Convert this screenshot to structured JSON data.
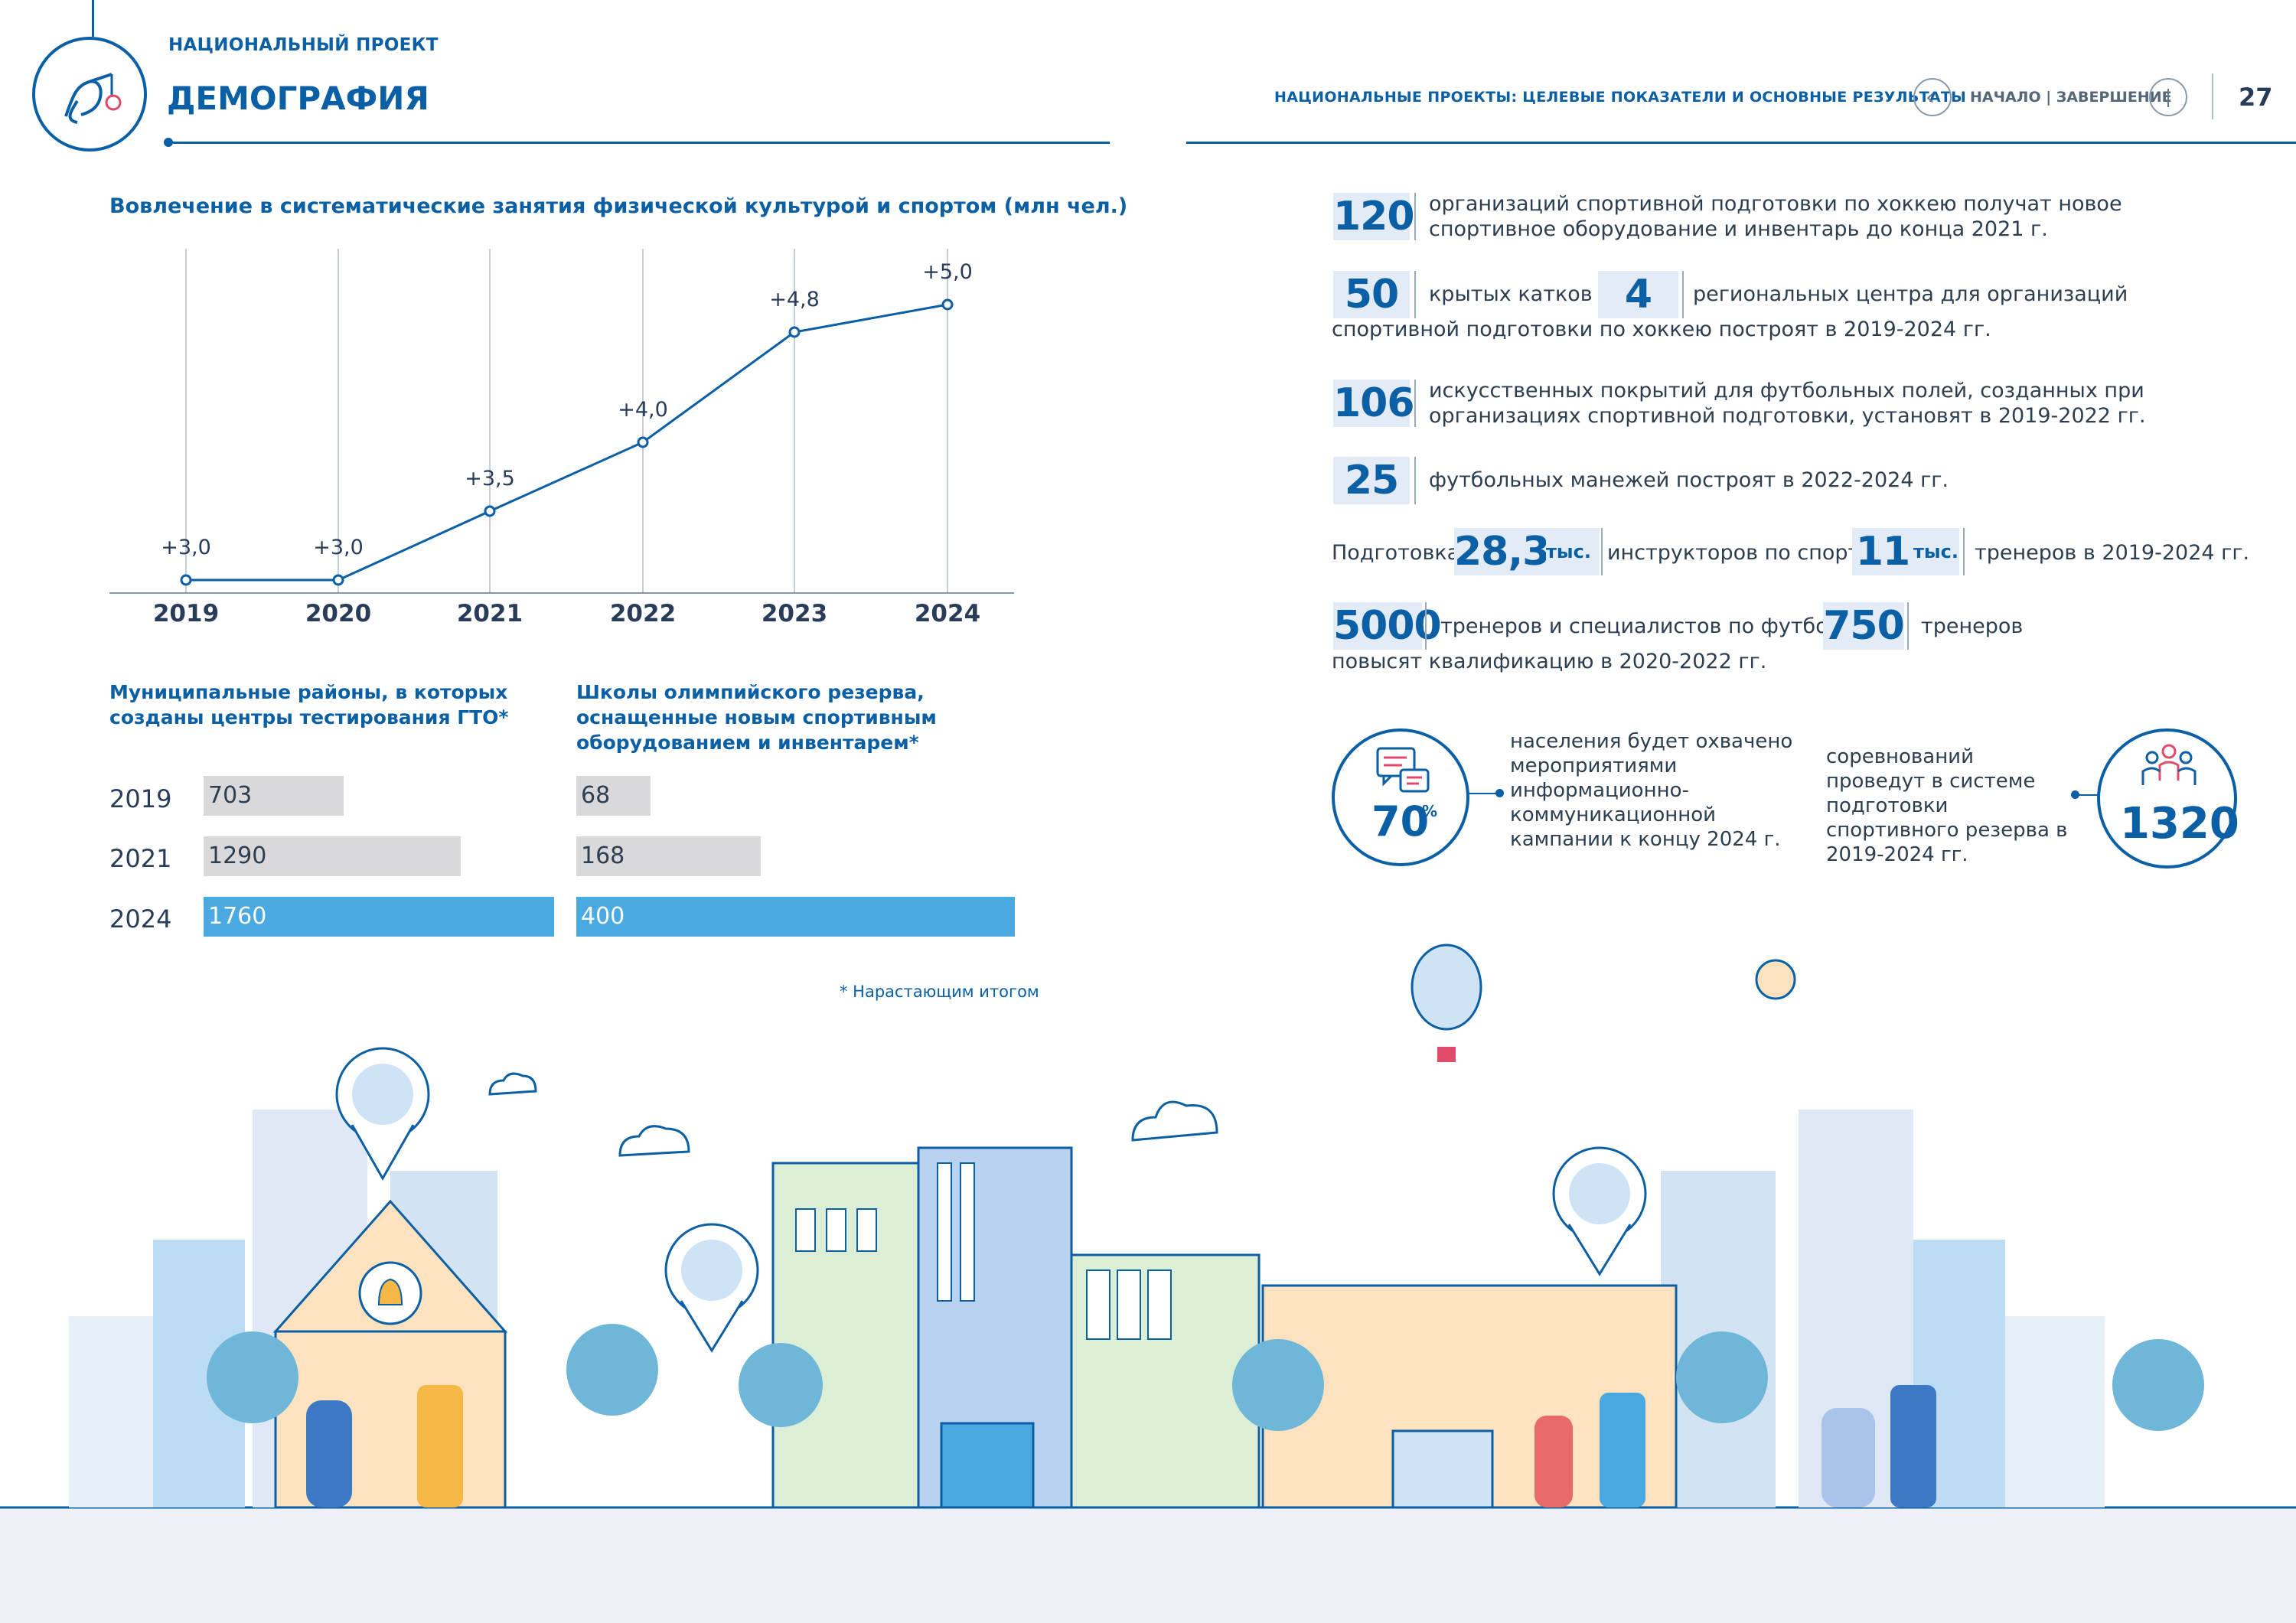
{
  "header": {
    "project_label": "НАЦИОНАЛЬНЫЙ ПРОЕКТ",
    "project_name": "ДЕМОГРАФИЯ",
    "right_title": "НАЦИОНАЛЬНЫЕ ПРОЕКТЫ: ЦЕЛЕВЫЕ ПОКАЗАТЕЛИ И ОСНОВНЫЕ РЕЗУЛЬТАТЫ",
    "nav_label": "НАЧАЛО | ЗАВЕРШЕНИЕ",
    "page_number": "27"
  },
  "line_chart": {
    "title": "Вовлечение в систематические занятия физической культурой и спортом (млн чел.)"
  },
  "chart_data": [
    {
      "type": "line",
      "title": "Вовлечение в систематические занятия физической культурой и спортом (млн чел.)",
      "x": [
        "2019",
        "2020",
        "2021",
        "2022",
        "2023",
        "2024"
      ],
      "values": [
        3.0,
        3.0,
        3.5,
        4.0,
        4.8,
        5.0
      ],
      "data_labels": [
        "+3,0",
        "+3,0",
        "+3,5",
        "+4,0",
        "+4,8",
        "+5,0"
      ]
    },
    {
      "type": "bar",
      "title": "Муниципальные районы, в которых созданы центры тестирования ГТО*",
      "categories": [
        "2019",
        "2021",
        "2024"
      ],
      "values": [
        703,
        1290,
        1760
      ],
      "data_labels": [
        "703",
        "1290",
        "1760"
      ]
    },
    {
      "type": "bar",
      "title": "Школы олимпийского резерва, оснащенные новым спортивным оборудованием и инвентарем*",
      "categories": [
        "2019",
        "2021",
        "2024"
      ],
      "values": [
        68,
        168,
        400
      ],
      "data_labels": [
        "68",
        "168",
        "400"
      ]
    }
  ],
  "bars": {
    "left_title": "Муниципальные районы, в которых созданы центры тестирования ГТО*",
    "right_title": "Школы олимпийского резерва, оснащенные новым спортивным оборудованием и инвентарем*",
    "years": [
      "2019",
      "2021",
      "2024"
    ],
    "footnote": "* Нарастающим итогом"
  },
  "stats": {
    "s1_num": "120",
    "s1_text": "организаций спортивной подготовки по хоккею получат новое спортивное оборудование и инвентарь до конца 2021 г.",
    "s2_num_a": "50",
    "s2_text_a": "крытых катков и",
    "s2_num_b": "4",
    "s2_text_b": "региональных центра для организаций",
    "s2_text_c": "спортивной подготовки по хоккею построят в 2019-2024 гг.",
    "s3_num": "106",
    "s3_text": "искусственных покрытий для футбольных полей, созданных при организациях спортивной подготовки, установят в 2019-2022 гг.",
    "s4_num": "25",
    "s4_text": "футбольных манежей построят в 2022-2024 гг.",
    "s5_prefix": "Подготовка",
    "s5_num_a": "28,3",
    "s5_unit_a": "тыс.",
    "s5_text_a": "инструкторов по спорту,",
    "s5_num_b": "11",
    "s5_unit_b": "тыс.",
    "s5_text_b": "тренеров в 2019-2024 гг.",
    "s6_num_a": "5000",
    "s6_text_a": "тренеров и специалистов по футболу и",
    "s6_num_b": "750",
    "s6_text_b": "тренеров",
    "s6_text_c": "повысят квалификацию в 2020-2022 гг.",
    "c1_value": "70",
    "c1_unit": "%",
    "c1_text": "населения будет охвачено мероприятиями информационно-коммуникационной кампании к концу 2024 г.",
    "c2_text": "соревнований проведут в системе подготовки спортивного резерва в 2019-2024 гг.",
    "c2_value": "1320"
  },
  "colors": {
    "brand": "#0b5fa5",
    "bar_gray": "#d9d9dc",
    "bar_blue": "#4aa9e0"
  }
}
